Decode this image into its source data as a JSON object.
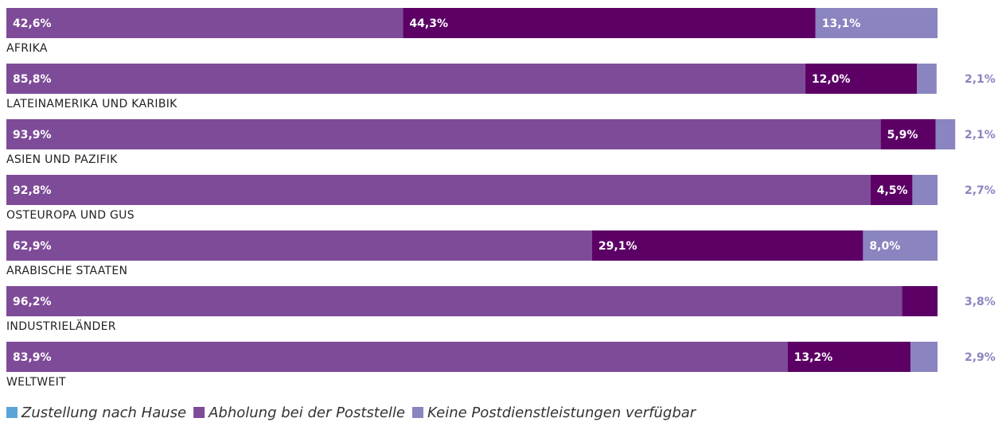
{
  "chart_data": {
    "type": "stacked-bar",
    "categories": [
      "AFRIKA",
      "LATEINAMERIKA UND KARIBIK",
      "ASIEN UND PAZIFIK",
      "OSTEUROPA UND GUS",
      "ARABISCHE STAATEN",
      "INDUSTRIELÄNDER",
      "WELTWEIT"
    ],
    "series": [
      {
        "name": "Zustellung nach Hause",
        "color": "#7e4b98",
        "legend_color": "#5ba4d8",
        "values": [
          42.6,
          85.8,
          93.9,
          92.8,
          62.9,
          96.2,
          83.9
        ],
        "value_labels": [
          "42,6%",
          "85,8%",
          "93,9%",
          "92,8%",
          "62,9%",
          "96,2%",
          "83,9%"
        ]
      },
      {
        "name": "Abholung bei der Poststelle",
        "color": "#5c0066",
        "legend_color": "#7e4b98",
        "values": [
          44.3,
          12.0,
          5.9,
          4.5,
          29.1,
          3.8,
          13.2
        ],
        "value_labels": [
          "44,3%",
          "12,0%",
          "5,9%",
          "4,5%",
          "29,1%",
          "3,8%",
          "13,2%"
        ]
      },
      {
        "name": "Keine Postdienstleistungen verfügbar",
        "color": "#8a84c0",
        "legend_color": "#8a84c0",
        "values": [
          13.1,
          2.1,
          2.1,
          2.7,
          8.0,
          null,
          2.9
        ],
        "value_labels": [
          "13,1%",
          "2,1%",
          "2,1%",
          "2,7%",
          "8,0%",
          null,
          "2,9%"
        ]
      }
    ]
  }
}
